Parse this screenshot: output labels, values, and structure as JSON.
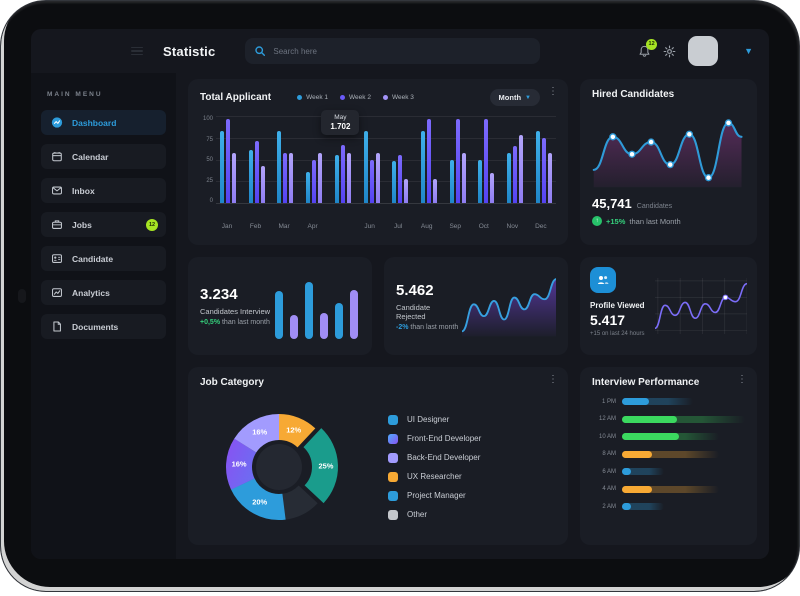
{
  "header": {
    "title": "Statistic",
    "search_placeholder": "Search here",
    "notification_count": "12"
  },
  "sidebar": {
    "section_label": "MAIN MENU",
    "items": [
      {
        "label": "Dashboard",
        "icon": "dashboard",
        "active": true
      },
      {
        "label": "Calendar",
        "icon": "calendar",
        "active": false
      },
      {
        "label": "Inbox",
        "icon": "inbox",
        "active": false
      },
      {
        "label": "Jobs",
        "icon": "jobs",
        "active": false,
        "badge": "12"
      },
      {
        "label": "Candidate",
        "icon": "candidate",
        "active": false
      },
      {
        "label": "Analytics",
        "icon": "analytics",
        "active": false
      },
      {
        "label": "Documents",
        "icon": "documents",
        "active": false
      }
    ]
  },
  "cards": {
    "total": {
      "title": "Total Applicant",
      "filter_label": "Month",
      "tooltip": {
        "label": "May",
        "value": "1.702"
      },
      "y_ticks": [
        "100",
        "75",
        "50",
        "25",
        "0"
      ],
      "months": [
        "Jan",
        "Feb",
        "Mar",
        "Apr",
        "",
        "Jun",
        "Jul",
        "Aug",
        "Sep",
        "Oct",
        "Nov",
        "Dec"
      ],
      "legend": [
        {
          "label": "Week 1",
          "dot": "#2d9cdb",
          "fill": "linear-gradient(180deg,#3fb0ea,#1f86c9)"
        },
        {
          "label": "Week 2",
          "dot": "#6a5af9",
          "fill": "linear-gradient(180deg,#7d6bfd,#5443f2)"
        },
        {
          "label": "Week 3",
          "dot": "#a293f8",
          "fill": "linear-gradient(180deg,#b2a4fa,#8f7df2)"
        }
      ],
      "values": [
        [
          83,
          96,
          57
        ],
        [
          61,
          71,
          43
        ],
        [
          83,
          57,
          57
        ],
        [
          36,
          50,
          57
        ],
        [
          55,
          67,
          57
        ],
        [
          83,
          50,
          57
        ],
        [
          48,
          55,
          28
        ],
        [
          83,
          96,
          28
        ],
        [
          50,
          96,
          57
        ],
        [
          50,
          96,
          35
        ],
        [
          57,
          65,
          78
        ],
        [
          83,
          75,
          57
        ]
      ]
    },
    "hired": {
      "title": "Hired Candidates",
      "value": "45,741",
      "unit": "Candidates",
      "delta": "+15%",
      "delta_suffix": " than last Month",
      "points": [
        [
          2,
          68
        ],
        [
          24,
          30
        ],
        [
          46,
          50
        ],
        [
          68,
          36
        ],
        [
          90,
          62
        ],
        [
          112,
          27
        ],
        [
          134,
          77
        ],
        [
          157,
          14
        ],
        [
          172,
          30
        ]
      ],
      "marker_indices": [
        1,
        2,
        3,
        4,
        5,
        6,
        7
      ]
    },
    "interview": {
      "value": "3.234",
      "label": "Candidates Interview",
      "delta": "+0,5%",
      "delta_color": "#35d07c",
      "delta_suffix": " than last month",
      "bars": [
        {
          "v": 72,
          "color": "#2d9cdb"
        },
        {
          "v": 36,
          "color": "#a08df5"
        },
        {
          "v": 86,
          "color": "#2d9cdb"
        },
        {
          "v": 40,
          "color": "#a08df5"
        },
        {
          "v": 54,
          "color": "#2d9cdb"
        },
        {
          "v": 74,
          "color": "#a08df5"
        }
      ]
    },
    "rejected": {
      "value": "5.462",
      "label": "Candidate Rejected",
      "delta": "-2%",
      "delta_color": "#2d9cdb",
      "delta_suffix": " than last month",
      "points": [
        [
          0,
          66
        ],
        [
          14,
          34
        ],
        [
          26,
          48
        ],
        [
          38,
          30
        ],
        [
          50,
          52
        ],
        [
          62,
          26
        ],
        [
          74,
          40
        ],
        [
          86,
          22
        ],
        [
          98,
          28
        ],
        [
          112,
          4
        ]
      ]
    },
    "profile": {
      "title": "Profile Viewed",
      "value": "5.417",
      "subtitle": "+15 on last 24 hours",
      "points": [
        [
          0,
          70
        ],
        [
          14,
          38
        ],
        [
          28,
          52
        ],
        [
          42,
          34
        ],
        [
          56,
          56
        ],
        [
          70,
          36
        ],
        [
          84,
          48
        ],
        [
          98,
          27
        ],
        [
          112,
          33
        ],
        [
          128,
          8
        ]
      ],
      "marker_index": 7
    },
    "job": {
      "title": "Job Category",
      "slices": [
        {
          "pct": 12,
          "color": "#f7a934",
          "label": "12%"
        },
        {
          "pct": 25,
          "color": "#1a9c8c",
          "label": "25%",
          "exploded": true
        },
        {
          "pct": 11,
          "color": "#272c35",
          "label": ""
        },
        {
          "pct": 20,
          "color": "#2d9cdb",
          "label": "20%"
        },
        {
          "pct": 16,
          "color": "gradient",
          "label": "16%"
        },
        {
          "pct": 16,
          "color": "#a29bfe",
          "label": "16%"
        }
      ],
      "legend": [
        {
          "label": "UI Designer",
          "swatch": "#2d9cdb"
        },
        {
          "label": "Front-End Developer",
          "swatch": "linear-gradient(135deg,#4facfe,#8753f2)"
        },
        {
          "label": "Back-End Developer",
          "swatch": "#a29bfe"
        },
        {
          "label": "UX Researcher",
          "swatch": "#f7a934"
        },
        {
          "label": "Project Manager",
          "swatch": "#2d9cdb"
        },
        {
          "label": "Other",
          "swatch": "#c4c7cc"
        }
      ]
    },
    "perf": {
      "title": "Interview Performance",
      "rows": [
        {
          "label": "1 PM",
          "color": "#2d9cdb",
          "trail": "rgba(45,156,219,0.30)",
          "bright": 22,
          "total": 58
        },
        {
          "label": "12 AM",
          "color": "#3bd95f",
          "trail": "rgba(59,217,95,0.30)",
          "bright": 45,
          "total": 100
        },
        {
          "label": "10 AM",
          "color": "#3bd95f",
          "trail": "rgba(59,217,95,0.30)",
          "bright": 46,
          "total": 79
        },
        {
          "label": "8 AM",
          "color": "#f7a934",
          "trail": "rgba(247,169,52,0.30)",
          "bright": 24,
          "total": 79
        },
        {
          "label": "6 AM",
          "color": "#2d9cdb",
          "trail": "rgba(45,156,219,0.30)",
          "bright": 7,
          "total": 34
        },
        {
          "label": "4 AM",
          "color": "#f7a934",
          "trail": "rgba(247,169,52,0.30)",
          "bright": 24,
          "total": 79
        },
        {
          "label": "2 AM",
          "color": "#2d9cdb",
          "trail": "rgba(45,156,219,0.30)",
          "bright": 7,
          "total": 34
        }
      ]
    }
  }
}
